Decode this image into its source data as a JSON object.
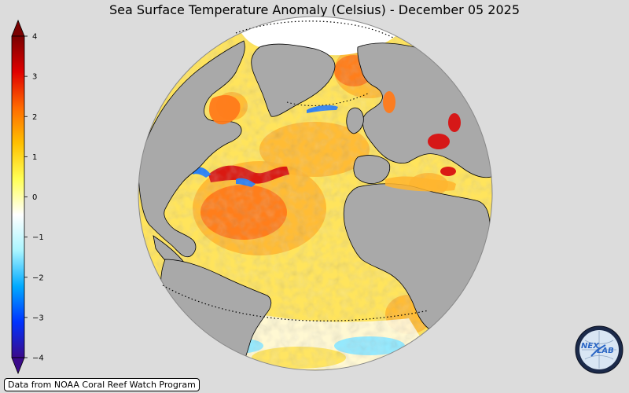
{
  "title": "Sea Surface Temperature Anomaly (Celsius) - December 05 2025",
  "colorbar": {
    "ticks": [
      "4",
      "3",
      "2",
      "1",
      "0",
      "−1",
      "−2",
      "−3",
      "−4"
    ],
    "min": -4,
    "max": 4,
    "colors": [
      "#3b0a8a",
      "#0033ff",
      "#00aaff",
      "#aaf5ff",
      "#ffffff",
      "#ffff55",
      "#ffc000",
      "#ff6a00",
      "#e00000",
      "#7a0000"
    ]
  },
  "globe": {
    "ocean_colors": {
      "warm_light": "#ffe45c",
      "warm_mid": "#ffb52e",
      "warm_strong": "#ff7a1a",
      "hot": "#d81010",
      "neutral": "#fffbe6",
      "cool": "#8fe8ff",
      "cold": "#1e7bff"
    },
    "land_color": "#a9a9a9",
    "ice_color": "#ffffff"
  },
  "credit": "Data from NOAA Coral Reef Watch Program",
  "logo": {
    "text_top": "NEX",
    "text_bottom": "LAB"
  }
}
